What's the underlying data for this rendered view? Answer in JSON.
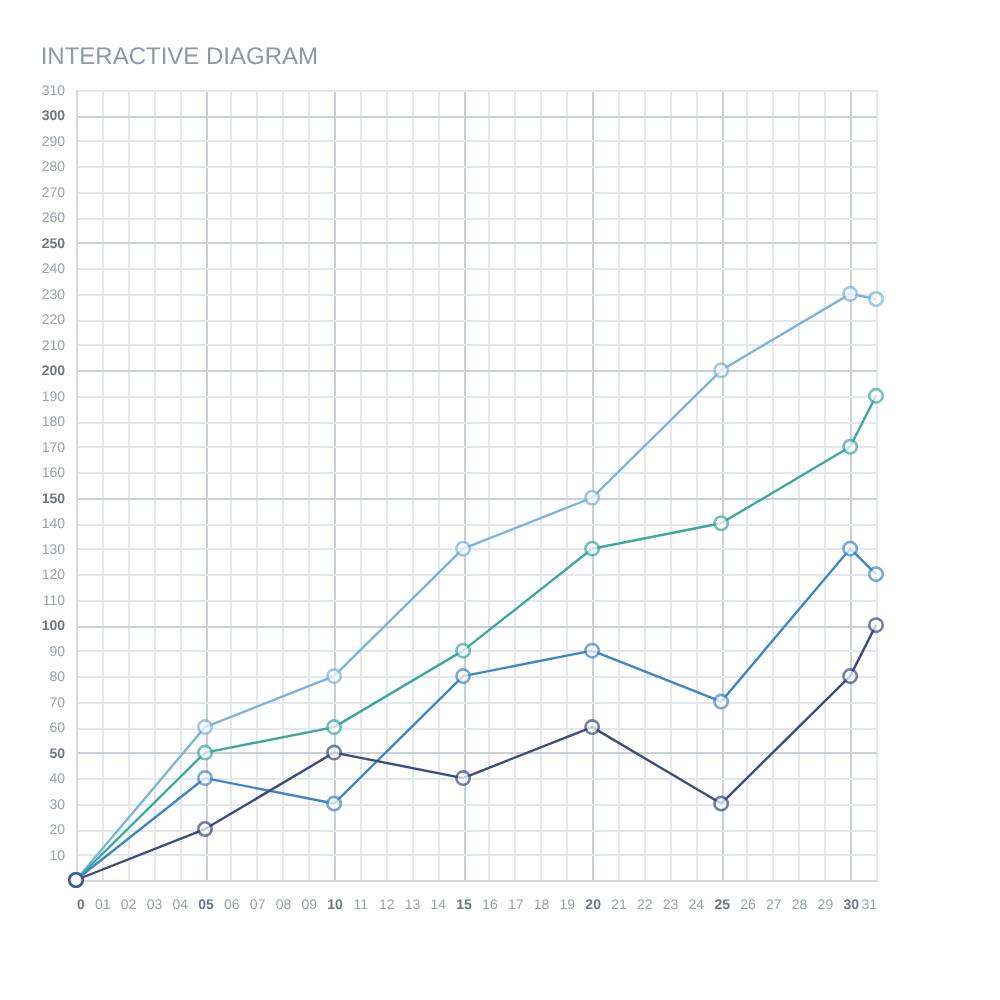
{
  "chart_data": {
    "type": "line",
    "title": "INTERACTIVE DIAGRAM",
    "x": [
      0,
      5,
      10,
      15,
      20,
      25,
      30,
      31
    ],
    "series": [
      {
        "color": "#7ab3dc",
        "values": [
          0,
          60,
          80,
          130,
          150,
          200,
          230,
          228
        ]
      },
      {
        "color": "#3aa8a0",
        "values": [
          0,
          50,
          60,
          90,
          130,
          140,
          170,
          190
        ]
      },
      {
        "color": "#3d86c6",
        "values": [
          0,
          40,
          30,
          80,
          90,
          70,
          130,
          120
        ]
      },
      {
        "color": "#3c4a7c",
        "values": [
          0,
          20,
          50,
          40,
          60,
          30,
          80,
          100
        ]
      }
    ],
    "xlim": [
      0,
      31
    ],
    "xticks": [
      0,
      {
        "value": 1,
        "label": "01"
      },
      {
        "value": 2,
        "label": "02"
      },
      {
        "value": 3,
        "label": "03"
      },
      {
        "value": 4,
        "label": "04"
      },
      {
        "value": 5,
        "label": "05"
      },
      {
        "value": 6,
        "label": "06"
      },
      {
        "value": 7,
        "label": "07"
      },
      {
        "value": 8,
        "label": "08"
      },
      {
        "value": 9,
        "label": "09"
      },
      10,
      11,
      12,
      13,
      14,
      15,
      16,
      17,
      18,
      19,
      20,
      21,
      22,
      23,
      24,
      25,
      26,
      27,
      28,
      29,
      30,
      31
    ],
    "ylim": [
      0,
      310
    ],
    "yticks": [
      {
        "value": 0,
        "label": null
      },
      10,
      20,
      30,
      40,
      50,
      60,
      70,
      80,
      90,
      100,
      110,
      120,
      130,
      140,
      150,
      160,
      170,
      180,
      190,
      200,
      210,
      220,
      230,
      240,
      250,
      260,
      270,
      280,
      290,
      300,
      310
    ],
    "grid": true,
    "marker": "circle",
    "line_style": "solid"
  }
}
